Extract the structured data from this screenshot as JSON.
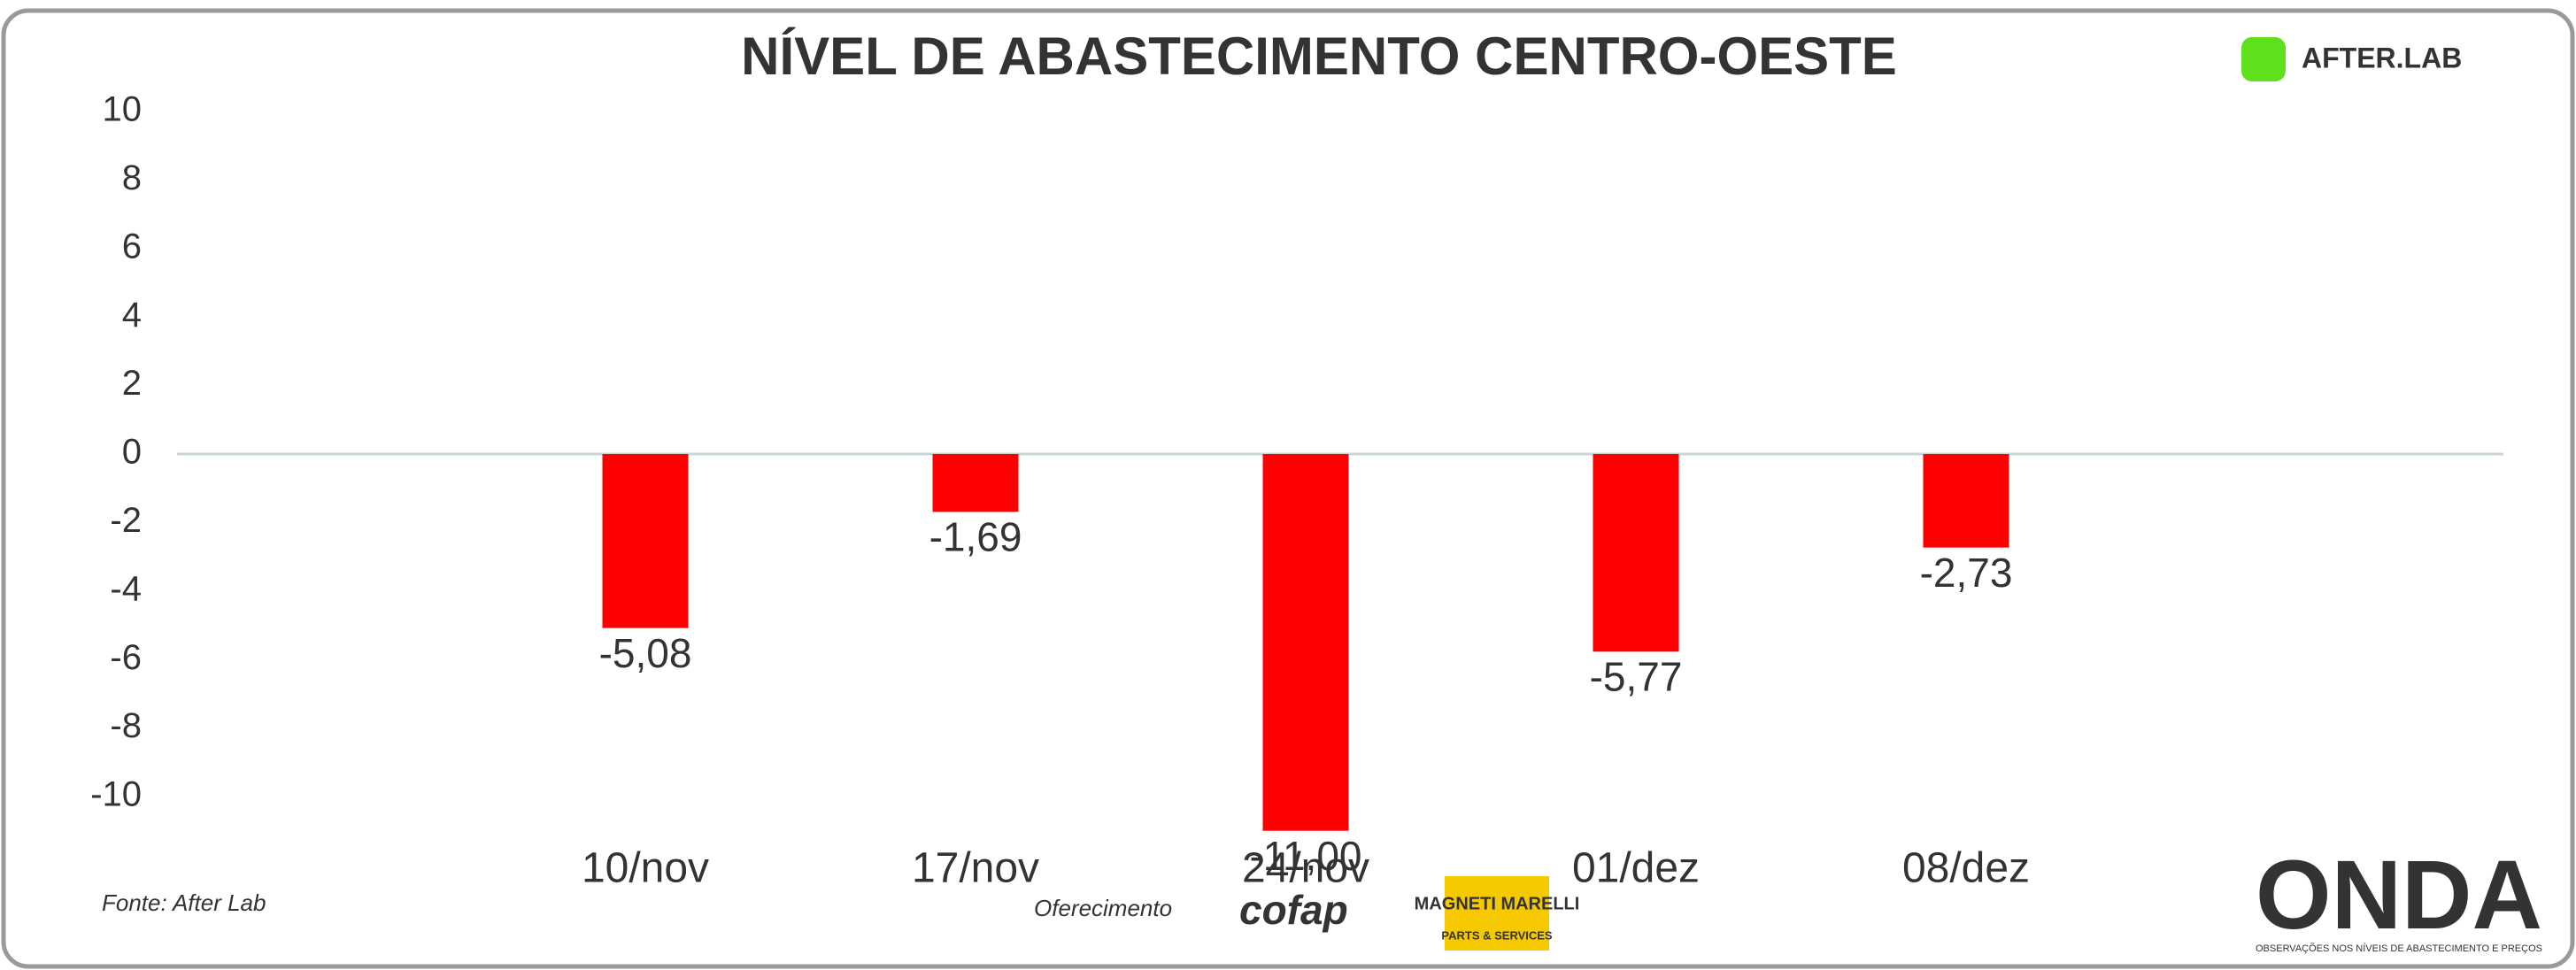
{
  "chart_data": {
    "type": "bar",
    "title": "NÍVEL DE ABASTECIMENTO CENTRO-OESTE",
    "categories": [
      "10/nov",
      "17/nov",
      "24/nov",
      "01/dez",
      "08/dez"
    ],
    "values": [
      -5.08,
      -1.69,
      -11.0,
      -5.77,
      -2.73
    ],
    "value_labels": [
      "-5,08",
      "-1,69",
      "-11,00",
      "-5,77",
      "-2,73"
    ],
    "color": "#ff0000",
    "ylim": [
      -10,
      10
    ],
    "yticks": [
      -10,
      -8,
      -6,
      -4,
      -2,
      0,
      2,
      4,
      6,
      8,
      10
    ],
    "grid": false
  },
  "branding": {
    "logo": "AFTER.LAB",
    "source": "Fonte: After Lab",
    "sponsor_label": "Oferecimento",
    "cofap": "cofap",
    "magneti": "MAGNETI MARELLI",
    "magneti_sub": "PARTS & SERVICES",
    "onda": "ONDA",
    "onda_tagline": "OBSERVAÇÕES NOS NÍVEIS DE ABASTECIMENTO E PREÇOS"
  }
}
